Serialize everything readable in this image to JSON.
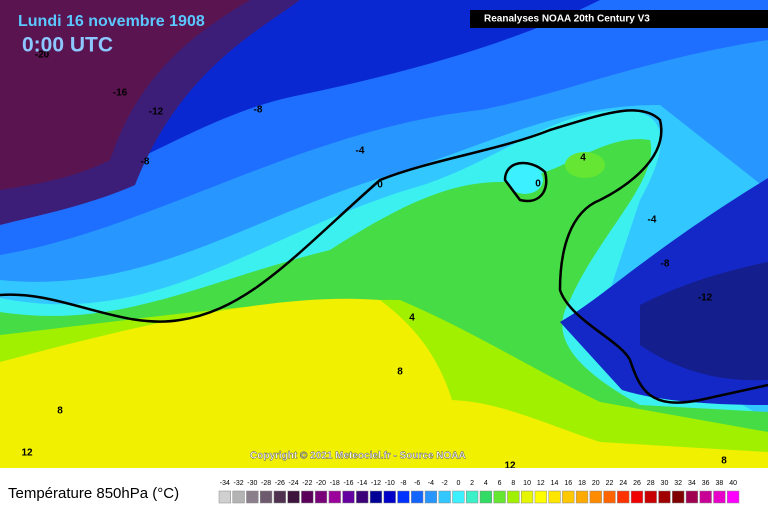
{
  "header": {
    "date": "Lundi 16 novembre 1908",
    "time": "0:00 UTC",
    "source": "Reanalyses NOAA 20th Century V3"
  },
  "map": {
    "contour_labels": [
      -20,
      -16,
      -12,
      -8,
      -8,
      -4,
      0,
      4,
      0,
      -4,
      -8,
      -12,
      4,
      8,
      8,
      12,
      12,
      8
    ],
    "copyright": "Copyright © 2021 Meteociel.fr - Source NOAA"
  },
  "legend": {
    "title": "Température 850hPa (°C)",
    "ticks": [
      -34,
      -32,
      -30,
      -28,
      -26,
      -24,
      -22,
      -20,
      -18,
      -16,
      -14,
      -12,
      -10,
      -8,
      -6,
      -4,
      -2,
      0,
      2,
      4,
      6,
      8,
      10,
      12,
      14,
      16,
      18,
      20,
      22,
      24,
      26,
      28,
      30,
      32,
      34,
      36,
      38,
      40
    ],
    "colors": [
      "#d0d0d0",
      "#b4b4b4",
      "#8c7f8c",
      "#6e5a6e",
      "#503250",
      "#3c143c",
      "#5a005a",
      "#780078",
      "#9b009b",
      "#6400a0",
      "#3c0078",
      "#000096",
      "#0000c8",
      "#0032ff",
      "#1464ff",
      "#2896ff",
      "#32c8ff",
      "#3cf0ff",
      "#3cf0c8",
      "#32dc64",
      "#64e632",
      "#a0f000",
      "#e6f500",
      "#ffff00",
      "#ffe600",
      "#ffc800",
      "#ffaa00",
      "#ff8c00",
      "#ff6400",
      "#ff3200",
      "#f00000",
      "#c80000",
      "#a00000",
      "#800000",
      "#a00050",
      "#c80096",
      "#e600c8",
      "#ff00ff"
    ]
  }
}
